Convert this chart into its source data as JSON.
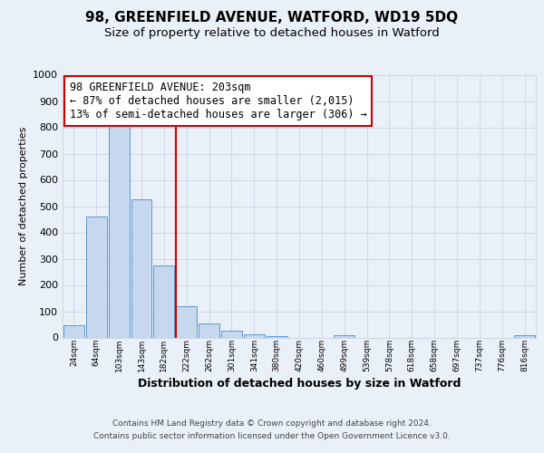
{
  "title": "98, GREENFIELD AVENUE, WATFORD, WD19 5DQ",
  "subtitle": "Size of property relative to detached houses in Watford",
  "xlabel": "Distribution of detached houses by size in Watford",
  "ylabel": "Number of detached properties",
  "bin_labels": [
    "24sqm",
    "64sqm",
    "103sqm",
    "143sqm",
    "182sqm",
    "222sqm",
    "262sqm",
    "301sqm",
    "341sqm",
    "380sqm",
    "420sqm",
    "460sqm",
    "499sqm",
    "539sqm",
    "578sqm",
    "618sqm",
    "658sqm",
    "697sqm",
    "737sqm",
    "776sqm",
    "816sqm"
  ],
  "bin_edges": [
    24,
    64,
    103,
    143,
    182,
    222,
    262,
    301,
    341,
    380,
    420,
    460,
    499,
    539,
    578,
    618,
    658,
    697,
    737,
    776,
    816
  ],
  "bar_heights": [
    45,
    460,
    810,
    525,
    275,
    120,
    55,
    25,
    12,
    5,
    0,
    0,
    10,
    0,
    0,
    0,
    0,
    0,
    0,
    0,
    10
  ],
  "bar_color": "#c5d8ed",
  "bar_edgecolor": "#5b9bd5",
  "vline_color": "#cc0000",
  "annotation_line1": "98 GREENFIELD AVENUE: 203sqm",
  "annotation_line2": "← 87% of detached houses are smaller (2,015)",
  "annotation_line3": "13% of semi-detached houses are larger (306) →",
  "annotation_box_edgecolor": "#cc0000",
  "annotation_box_facecolor": "#ffffff",
  "ylim": [
    0,
    1000
  ],
  "yticks": [
    0,
    100,
    200,
    300,
    400,
    500,
    600,
    700,
    800,
    900,
    1000
  ],
  "grid_color": "#d0d8e8",
  "background_color": "#eaf0f8",
  "plot_bg_color": "#eaf0f8",
  "footer_line1": "Contains HM Land Registry data © Crown copyright and database right 2024.",
  "footer_line2": "Contains public sector information licensed under the Open Government Licence v3.0.",
  "title_fontsize": 11,
  "subtitle_fontsize": 9.5,
  "xlabel_fontsize": 9,
  "ylabel_fontsize": 8,
  "annotation_fontsize": 8.5
}
